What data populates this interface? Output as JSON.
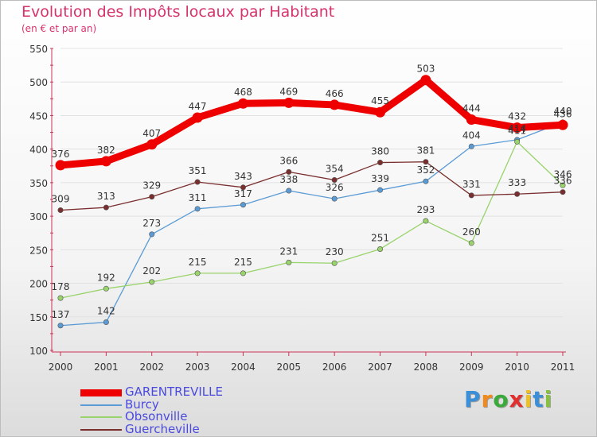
{
  "chart_data": {
    "type": "line",
    "title": "Evolution des Impôts locaux par Habitant",
    "subtitle": "(en € et par an)",
    "categories": [
      "2000",
      "2001",
      "2002",
      "2003",
      "2004",
      "2005",
      "2006",
      "2007",
      "2008",
      "2009",
      "2010",
      "2011"
    ],
    "ylim": [
      100,
      550
    ],
    "yticks": [
      100,
      150,
      200,
      250,
      300,
      350,
      400,
      450,
      500,
      550
    ],
    "legend_position": "bottom-left",
    "series": [
      {
        "name": "GARENTREVILLE",
        "color": "#ee0000",
        "width": 9,
        "marker": 6.5,
        "values": [
          376,
          382,
          407,
          447,
          468,
          469,
          466,
          455,
          503,
          444,
          432,
          436
        ],
        "labels": [
          "376",
          "382",
          "407",
          "447",
          "468",
          "469",
          "466",
          "455",
          "503",
          "444",
          "432",
          "436"
        ]
      },
      {
        "name": "Burcy",
        "color": "#5b9bd5",
        "width": 1.3,
        "marker": 3.2,
        "values": [
          137,
          142,
          273,
          311,
          317,
          338,
          326,
          339,
          352,
          404,
          414,
          440
        ],
        "labels": [
          "137",
          "142",
          "273",
          "311",
          "317",
          "338",
          "326",
          "339",
          "352",
          "404",
          "414",
          "440"
        ]
      },
      {
        "name": "Obsonville",
        "color": "#99d36b",
        "width": 1.3,
        "marker": 3.2,
        "values": [
          178,
          192,
          202,
          215,
          215,
          231,
          230,
          251,
          293,
          260,
          411,
          346
        ],
        "labels": [
          "178",
          "192",
          "202",
          "215",
          "215",
          "231",
          "230",
          "251",
          "293",
          "260",
          "411",
          "346"
        ]
      },
      {
        "name": "Guercheville",
        "color": "#7a2e2e",
        "width": 1.3,
        "marker": 3.2,
        "values": [
          309,
          313,
          329,
          351,
          343,
          366,
          354,
          380,
          381,
          331,
          333,
          336
        ],
        "labels": [
          "309",
          "313",
          "329",
          "351",
          "343",
          "366",
          "354",
          "380",
          "381",
          "331",
          "333",
          "336"
        ]
      }
    ]
  },
  "logo": {
    "letters": [
      "P",
      "r",
      "o",
      "x",
      "i",
      "t",
      "i"
    ],
    "colors": [
      "#3a8fd8",
      "#f08a1c",
      "#3aaa3a",
      "#e03030",
      "#f0c020",
      "#3a8fd8",
      "#88c040"
    ]
  }
}
